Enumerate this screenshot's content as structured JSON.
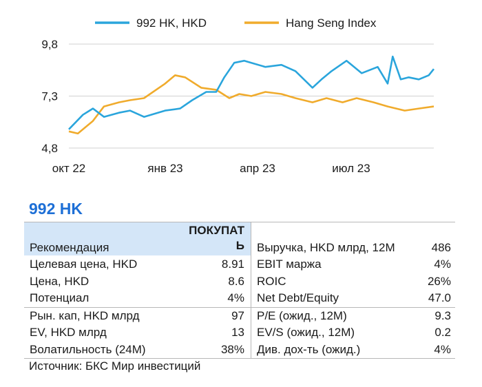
{
  "chart_data": {
    "type": "line",
    "y_ticks": [
      "9,8",
      "7,3",
      "4,8"
    ],
    "y_tick_values": [
      9.8,
      7.3,
      4.8
    ],
    "ylim": [
      4.8,
      9.8
    ],
    "x_ticks": [
      "окт 22",
      "янв 23",
      "апр 23",
      "июл 23"
    ],
    "x_range": [
      "2022-10-01",
      "2023-09-30"
    ],
    "grid": "horizontal",
    "legend_position": "top",
    "series": [
      {
        "name": "992 HK, HKD",
        "color": "#2aa5dc",
        "x": [
          "2022-10-01",
          "2022-10-15",
          "2022-10-25",
          "2022-11-05",
          "2022-11-20",
          "2022-12-01",
          "2022-12-15",
          "2023-01-05",
          "2023-01-20",
          "2023-02-01",
          "2023-02-15",
          "2023-02-25",
          "2023-03-05",
          "2023-03-15",
          "2023-03-25",
          "2023-04-01",
          "2023-04-15",
          "2023-05-01",
          "2023-05-15",
          "2023-06-01",
          "2023-06-10",
          "2023-06-20",
          "2023-07-05",
          "2023-07-20",
          "2023-08-05",
          "2023-08-15",
          "2023-08-20",
          "2023-08-28",
          "2023-09-05",
          "2023-09-15",
          "2023-09-25",
          "2023-09-30"
        ],
        "values": [
          5.7,
          6.4,
          6.7,
          6.3,
          6.5,
          6.6,
          6.3,
          6.6,
          6.7,
          7.1,
          7.5,
          7.5,
          8.2,
          8.9,
          9.0,
          8.9,
          8.7,
          8.8,
          8.5,
          7.7,
          8.1,
          8.5,
          9.0,
          8.4,
          8.7,
          7.9,
          9.2,
          8.1,
          8.2,
          8.1,
          8.3,
          8.6
        ]
      },
      {
        "name": "Hang Seng Index",
        "color": "#f0ab2c",
        "x": [
          "2022-10-01",
          "2022-10-10",
          "2022-10-25",
          "2022-11-05",
          "2022-11-20",
          "2022-12-01",
          "2022-12-15",
          "2023-01-05",
          "2023-01-15",
          "2023-01-25",
          "2023-02-10",
          "2023-02-25",
          "2023-03-10",
          "2023-03-20",
          "2023-04-01",
          "2023-04-15",
          "2023-05-01",
          "2023-05-15",
          "2023-06-01",
          "2023-06-15",
          "2023-07-01",
          "2023-07-15",
          "2023-08-01",
          "2023-08-15",
          "2023-09-01",
          "2023-09-15",
          "2023-09-30"
        ],
        "values": [
          5.6,
          5.5,
          6.1,
          6.8,
          7.0,
          7.1,
          7.2,
          7.9,
          8.3,
          8.2,
          7.7,
          7.6,
          7.2,
          7.4,
          7.3,
          7.5,
          7.4,
          7.2,
          7.0,
          7.2,
          7.0,
          7.2,
          7.0,
          6.8,
          6.6,
          6.7,
          6.8
        ]
      }
    ]
  },
  "ticker": "992 HK",
  "card": {
    "recommendation_label": "Рекомендация",
    "recommendation_value_line1": "ПОКУПАТ",
    "recommendation_value_line2": "Ь",
    "revenue_label": "Выручка, HKD млрд, 12М",
    "revenue_value": "486",
    "rows_block1": [
      {
        "left_label": "Целевая цена, HKD",
        "left_value": "8.91",
        "right_label": "EBIT маржа",
        "right_value": "4%"
      },
      {
        "left_label": "Цена, HKD",
        "left_value": "8.6",
        "right_label": "ROIC",
        "right_value": "26%"
      },
      {
        "left_label": "Потенциал",
        "left_value": "4%",
        "right_label": "Net Debt/Equity",
        "right_value": "47.0"
      }
    ],
    "rows_block2": [
      {
        "left_label": "Рын. кап, HKD млрд",
        "left_value": "97",
        "right_label": "P/E (ожид., 12М)",
        "right_value": "9.3"
      },
      {
        "left_label": "EV, HKD млрд",
        "left_value": "13",
        "right_label": "EV/S (ожид., 12М)",
        "right_value": "0.2"
      },
      {
        "left_label": "Волатильность (24М)",
        "left_value": "38%",
        "right_label": "Див. дох-ть (ожид.)",
        "right_value": "4%"
      }
    ]
  },
  "source": "Источник: БКС Мир инвестиций"
}
